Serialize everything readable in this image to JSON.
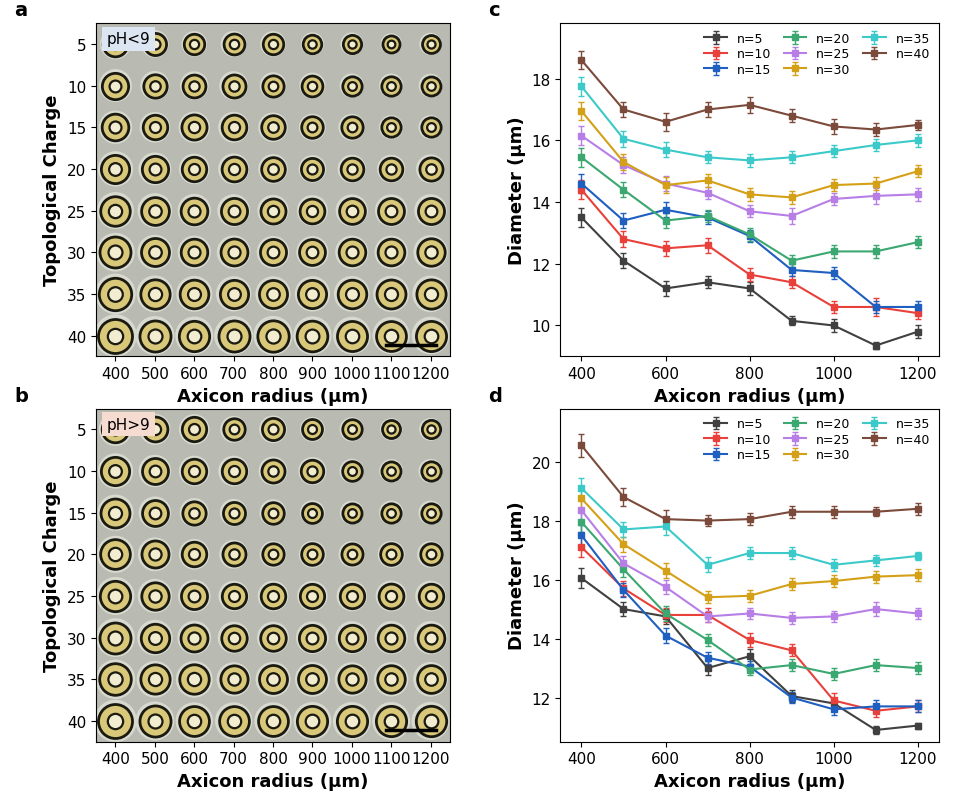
{
  "chart_data": [
    {
      "panel": "a",
      "type": "ring_array",
      "label": "pH<9",
      "xlabel": "Axicon radius (μm)",
      "ylabel": "Topological Charge",
      "categories": [
        "400",
        "500",
        "600",
        "700",
        "800",
        "900",
        "1000",
        "1100",
        "1200"
      ],
      "y_categories": [
        "5",
        "10",
        "15",
        "20",
        "25",
        "30",
        "35",
        "40"
      ]
    },
    {
      "panel": "b",
      "type": "ring_array",
      "label": "pH>9",
      "xlabel": "Axicon radius (μm)",
      "ylabel": "Topological Charge",
      "categories": [
        "400",
        "500",
        "600",
        "700",
        "800",
        "900",
        "1000",
        "1100",
        "1200"
      ],
      "y_categories": [
        "5",
        "10",
        "15",
        "20",
        "25",
        "30",
        "35",
        "40"
      ]
    },
    {
      "panel": "c",
      "type": "line",
      "xlabel": "Axicon radius (μm)",
      "ylabel": "Diameter (μm)",
      "x": [
        400,
        500,
        600,
        700,
        800,
        900,
        1000,
        1100,
        1200
      ],
      "xlim": [
        350,
        1250
      ],
      "xticks": [
        400,
        600,
        800,
        1000,
        1200
      ],
      "ylim": [
        9.0,
        19.8
      ],
      "yticks": [
        10,
        12,
        14,
        16,
        18
      ],
      "legend": "upper right",
      "marker": "square",
      "line_style": "solid",
      "series": [
        {
          "name": "n=5",
          "color": "#404040",
          "values": [
            13.5,
            12.1,
            11.2,
            11.4,
            11.2,
            10.15,
            10.0,
            9.35,
            9.8
          ],
          "errors": [
            0.3,
            0.25,
            0.25,
            0.2,
            0.2,
            0.15,
            0.2,
            0.1,
            0.2
          ]
        },
        {
          "name": "n=10",
          "color": "#e8403a",
          "values": [
            14.4,
            12.8,
            12.5,
            12.6,
            11.65,
            11.4,
            10.6,
            10.6,
            10.4
          ],
          "errors": [
            0.3,
            0.25,
            0.25,
            0.25,
            0.2,
            0.2,
            0.2,
            0.3,
            0.2
          ]
        },
        {
          "name": "n=15",
          "color": "#1f5fbf",
          "values": [
            14.6,
            13.4,
            13.75,
            13.5,
            12.9,
            11.8,
            11.7,
            10.6,
            10.6
          ],
          "errors": [
            0.3,
            0.25,
            0.25,
            0.2,
            0.2,
            0.2,
            0.2,
            0.2,
            0.2
          ]
        },
        {
          "name": "n=20",
          "color": "#3aa870",
          "values": [
            15.45,
            14.4,
            13.4,
            13.55,
            12.95,
            12.1,
            12.4,
            12.4,
            12.7
          ],
          "errors": [
            0.3,
            0.25,
            0.25,
            0.2,
            0.2,
            0.2,
            0.2,
            0.2,
            0.2
          ]
        },
        {
          "name": "n=25",
          "color": "#b77ee6",
          "values": [
            16.15,
            15.2,
            14.6,
            14.3,
            13.7,
            13.55,
            14.1,
            14.2,
            14.25
          ],
          "errors": [
            0.3,
            0.25,
            0.25,
            0.2,
            0.2,
            0.25,
            0.2,
            0.25,
            0.2
          ]
        },
        {
          "name": "n=30",
          "color": "#d4a017",
          "values": [
            16.95,
            15.3,
            14.55,
            14.7,
            14.25,
            14.15,
            14.55,
            14.6,
            15.0
          ],
          "errors": [
            0.3,
            0.25,
            0.25,
            0.2,
            0.2,
            0.2,
            0.2,
            0.2,
            0.2
          ]
        },
        {
          "name": "n=35",
          "color": "#3cc9c9",
          "values": [
            17.75,
            16.05,
            15.7,
            15.45,
            15.35,
            15.45,
            15.65,
            15.85,
            16.0
          ],
          "errors": [
            0.3,
            0.25,
            0.25,
            0.2,
            0.2,
            0.2,
            0.2,
            0.2,
            0.2
          ]
        },
        {
          "name": "n=40",
          "color": "#7b4a3a",
          "values": [
            18.6,
            17.0,
            16.6,
            17.0,
            17.15,
            16.8,
            16.45,
            16.35,
            16.5
          ],
          "errors": [
            0.3,
            0.25,
            0.3,
            0.25,
            0.25,
            0.2,
            0.25,
            0.2,
            0.15
          ]
        }
      ]
    },
    {
      "panel": "d",
      "type": "line",
      "xlabel": "Axicon radius (μm)",
      "ylabel": "Diameter (μm)",
      "x": [
        400,
        500,
        600,
        700,
        800,
        900,
        1000,
        1100,
        1200
      ],
      "xlim": [
        350,
        1250
      ],
      "xticks": [
        400,
        600,
        800,
        1000,
        1200
      ],
      "ylim": [
        10.5,
        21.8
      ],
      "yticks": [
        12,
        14,
        16,
        18,
        20
      ],
      "legend": "upper right",
      "marker": "square",
      "line_style": "solid",
      "series": [
        {
          "name": "n=5",
          "color": "#404040",
          "values": [
            16.05,
            15.0,
            14.75,
            13.0,
            13.4,
            12.05,
            11.8,
            10.9,
            11.05
          ],
          "errors": [
            0.35,
            0.25,
            0.25,
            0.25,
            0.25,
            0.2,
            0.2,
            0.15,
            0.1
          ]
        },
        {
          "name": "n=10",
          "color": "#e8403a",
          "values": [
            17.1,
            15.7,
            14.8,
            14.8,
            13.95,
            13.6,
            11.9,
            11.55,
            11.7
          ],
          "errors": [
            0.35,
            0.25,
            0.25,
            0.25,
            0.25,
            0.2,
            0.25,
            0.2,
            0.2
          ]
        },
        {
          "name": "n=15",
          "color": "#1f5fbf",
          "values": [
            17.5,
            15.65,
            14.1,
            13.35,
            13.05,
            12.0,
            11.6,
            11.7,
            11.7
          ],
          "errors": [
            0.35,
            0.25,
            0.25,
            0.2,
            0.2,
            0.2,
            0.2,
            0.2,
            0.2
          ]
        },
        {
          "name": "n=20",
          "color": "#3aa870",
          "values": [
            17.95,
            16.35,
            14.85,
            13.95,
            12.95,
            13.1,
            12.8,
            13.1,
            13.0
          ],
          "errors": [
            0.35,
            0.25,
            0.25,
            0.2,
            0.2,
            0.2,
            0.2,
            0.2,
            0.2
          ]
        },
        {
          "name": "n=25",
          "color": "#b77ee6",
          "values": [
            18.35,
            16.55,
            15.75,
            14.75,
            14.85,
            14.7,
            14.75,
            15.0,
            14.85
          ],
          "errors": [
            0.35,
            0.25,
            0.25,
            0.2,
            0.2,
            0.2,
            0.2,
            0.25,
            0.2
          ]
        },
        {
          "name": "n=30",
          "color": "#d4a017",
          "values": [
            18.75,
            17.2,
            16.3,
            15.4,
            15.45,
            15.85,
            15.95,
            16.1,
            16.15
          ],
          "errors": [
            0.35,
            0.25,
            0.25,
            0.2,
            0.2,
            0.2,
            0.2,
            0.2,
            0.2
          ]
        },
        {
          "name": "n=35",
          "color": "#3cc9c9",
          "values": [
            19.1,
            17.7,
            17.8,
            16.5,
            16.9,
            16.9,
            16.5,
            16.65,
            16.8
          ],
          "errors": [
            0.35,
            0.25,
            0.3,
            0.25,
            0.2,
            0.2,
            0.2,
            0.2,
            0.15
          ]
        },
        {
          "name": "n=40",
          "color": "#7b4a3a",
          "values": [
            20.55,
            18.8,
            18.05,
            18.0,
            18.05,
            18.3,
            18.3,
            18.3,
            18.4
          ],
          "errors": [
            0.4,
            0.3,
            0.3,
            0.2,
            0.2,
            0.2,
            0.2,
            0.15,
            0.2
          ]
        }
      ]
    }
  ]
}
